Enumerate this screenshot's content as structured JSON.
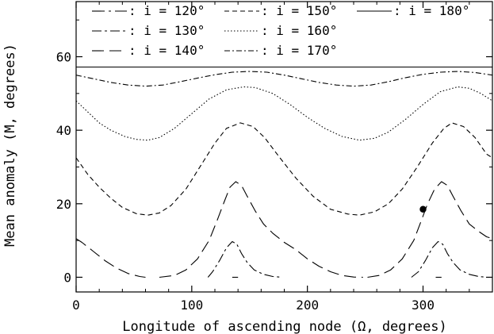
{
  "chart_data": {
    "type": "line",
    "xlabel": "Longitude of ascending node (Ω, degrees)",
    "ylabel": "Mean anomaly (M, degrees)",
    "xlim": [
      0,
      360
    ],
    "ylim": [
      -4,
      75
    ],
    "xticks": [
      0,
      100,
      200,
      300
    ],
    "yticks": [
      0,
      20,
      40,
      60
    ],
    "xtick_labels": [
      "0",
      "100",
      "200",
      "300"
    ],
    "ytick_labels": [
      "0",
      "20",
      "40",
      "60"
    ],
    "grid": false,
    "legend_position": "top",
    "series": [
      {
        "name": "i = 120°",
        "dash": "16,5,3,5",
        "segments": [
          [
            [
              135,
              0
            ],
            [
              140,
              0
            ]
          ],
          [
            [
              311,
              0
            ],
            [
              316,
              0
            ]
          ]
        ]
      },
      {
        "name": "i = 130°",
        "dash": "12,4,3,4",
        "segments": [
          [
            [
              114,
              0
            ],
            [
              118,
              1.5
            ],
            [
              124,
              4.5
            ],
            [
              130,
              8
            ],
            [
              135,
              9.7
            ],
            [
              139,
              9
            ],
            [
              143,
              6.5
            ],
            [
              148,
              4
            ],
            [
              154,
              2
            ],
            [
              162,
              0.8
            ],
            [
              170,
              0.2
            ],
            [
              178,
              0
            ]
          ],
          [
            [
              290,
              0
            ],
            [
              296,
              1.5
            ],
            [
              302,
              4.5
            ],
            [
              308,
              8
            ],
            [
              313,
              9.7
            ],
            [
              317,
              9
            ],
            [
              321,
              6.5
            ],
            [
              326,
              4
            ],
            [
              332,
              2
            ],
            [
              340,
              0.8
            ],
            [
              348,
              0.2
            ],
            [
              355,
              0
            ]
          ]
        ]
      },
      {
        "name": "i = 140°",
        "dash": "15,7",
        "segments": [
          [
            [
              0,
              10.5
            ],
            [
              5,
              9.5
            ],
            [
              15,
              7
            ],
            [
              25,
              4.5
            ],
            [
              35,
              2.5
            ],
            [
              45,
              1
            ],
            [
              55,
              0.2
            ],
            [
              60,
              0
            ]
          ],
          [
            [
              72,
              0
            ],
            [
              85,
              0.5
            ],
            [
              95,
              2
            ],
            [
              105,
              5
            ],
            [
              115,
              10
            ],
            [
              122,
              15.5
            ],
            [
              128,
              20.5
            ],
            [
              133,
              24.5
            ],
            [
              138,
              26
            ],
            [
              143,
              25
            ],
            [
              148,
              22
            ],
            [
              155,
              18
            ],
            [
              162,
              14.5
            ],
            [
              170,
              12
            ],
            [
              180,
              9.5
            ],
            [
              190,
              7.5
            ],
            [
              200,
              5
            ],
            [
              210,
              3
            ],
            [
              220,
              1.5
            ],
            [
              230,
              0.5
            ],
            [
              240,
              0.05
            ],
            [
              248,
              0
            ]
          ],
          [
            [
              252,
              0
            ],
            [
              262,
              0.5
            ],
            [
              272,
              2
            ],
            [
              282,
              5
            ],
            [
              292,
              10
            ],
            [
              298,
              15
            ],
            [
              304,
              20
            ],
            [
              310,
              24
            ],
            [
              316,
              26
            ],
            [
              321,
              25
            ],
            [
              326,
              22
            ],
            [
              333,
              18
            ],
            [
              340,
              14.5
            ],
            [
              348,
              12.5
            ],
            [
              355,
              11
            ],
            [
              360,
              10.5
            ]
          ]
        ]
      },
      {
        "name": "i = 150°",
        "dash": "6,4",
        "segments": [
          [
            [
              0,
              32.5
            ],
            [
              10,
              28
            ],
            [
              20,
              24.5
            ],
            [
              30,
              21.5
            ],
            [
              40,
              19
            ],
            [
              52,
              17.3
            ],
            [
              62,
              16.9
            ],
            [
              72,
              17.5
            ],
            [
              82,
              19.5
            ],
            [
              95,
              24
            ],
            [
              108,
              30.5
            ],
            [
              120,
              36.5
            ],
            [
              130,
              40.5
            ],
            [
              142,
              42
            ],
            [
              153,
              41
            ],
            [
              163,
              38
            ],
            [
              175,
              33
            ],
            [
              190,
              27
            ],
            [
              205,
              22
            ],
            [
              220,
              18.5
            ],
            [
              235,
              17.2
            ],
            [
              245,
              16.9
            ],
            [
              258,
              17.8
            ],
            [
              270,
              20
            ],
            [
              282,
              24
            ],
            [
              295,
              30
            ],
            [
              308,
              36.5
            ],
            [
              318,
              40.5
            ],
            [
              325,
              42
            ],
            [
              335,
              41
            ],
            [
              345,
              38
            ],
            [
              355,
              33.5
            ],
            [
              360,
              32.5
            ]
          ]
        ]
      },
      {
        "name": "i = 160°",
        "dash": "1.5,2.5",
        "segments": [
          [
            [
              0,
              48
            ],
            [
              10,
              45
            ],
            [
              20,
              42
            ],
            [
              30,
              40
            ],
            [
              42,
              38.3
            ],
            [
              52,
              37.5
            ],
            [
              62,
              37.3
            ],
            [
              72,
              38
            ],
            [
              85,
              40.5
            ],
            [
              100,
              44.5
            ],
            [
              115,
              48.5
            ],
            [
              130,
              51
            ],
            [
              145,
              51.8
            ],
            [
              155,
              51.6
            ],
            [
              170,
              50
            ],
            [
              185,
              47
            ],
            [
              200,
              43.5
            ],
            [
              215,
              40.5
            ],
            [
              230,
              38.3
            ],
            [
              245,
              37.3
            ],
            [
              258,
              37.8
            ],
            [
              270,
              39.5
            ],
            [
              285,
              43
            ],
            [
              300,
              47
            ],
            [
              315,
              50.5
            ],
            [
              330,
              51.8
            ],
            [
              340,
              51.4
            ],
            [
              350,
              50
            ],
            [
              360,
              48
            ]
          ]
        ]
      },
      {
        "name": "i = 170°",
        "dash": "7,3,2,3",
        "segments": [
          [
            [
              0,
              55
            ],
            [
              15,
              54
            ],
            [
              30,
              53
            ],
            [
              45,
              52.3
            ],
            [
              60,
              52
            ],
            [
              75,
              52.3
            ],
            [
              90,
              53.2
            ],
            [
              105,
              54.2
            ],
            [
              120,
              55.1
            ],
            [
              135,
              55.8
            ],
            [
              150,
              56
            ],
            [
              165,
              55.8
            ],
            [
              180,
              55
            ],
            [
              195,
              54
            ],
            [
              210,
              53
            ],
            [
              225,
              52.3
            ],
            [
              240,
              52
            ],
            [
              255,
              52.3
            ],
            [
              270,
              53.2
            ],
            [
              285,
              54.3
            ],
            [
              300,
              55.2
            ],
            [
              315,
              55.8
            ],
            [
              330,
              56
            ],
            [
              345,
              55.7
            ],
            [
              360,
              55
            ]
          ]
        ]
      },
      {
        "name": "i = 180°",
        "dash": "",
        "segments": [
          [
            [
              0,
              57.2
            ],
            [
              360,
              57.2
            ]
          ]
        ]
      }
    ],
    "points": [
      {
        "x": 300,
        "y": 18.5
      }
    ]
  }
}
